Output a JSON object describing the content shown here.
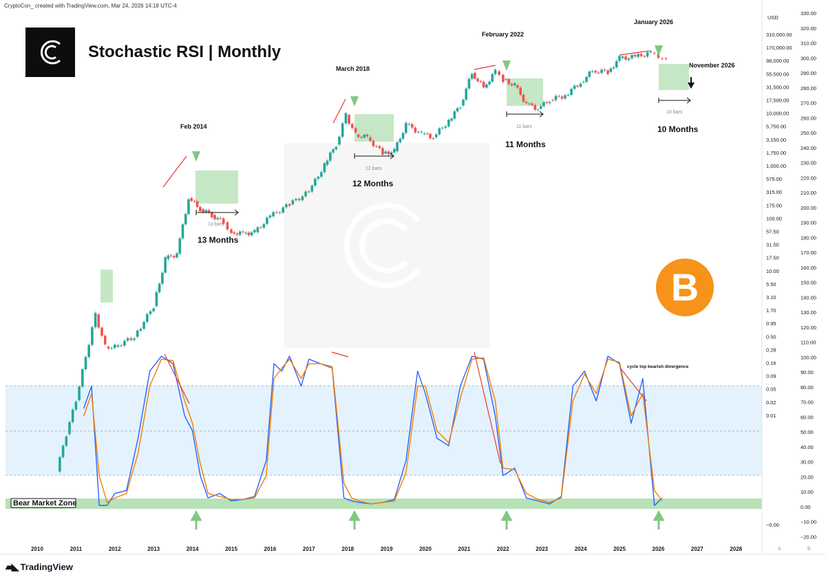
{
  "header": {
    "credit": "CryptoCon_ created with TradingView.com, Mar 24, 2026 14:18 UTC-4"
  },
  "title": "Stochastic RSI | Monthly",
  "footer": {
    "brand": "TradingView"
  },
  "colors": {
    "up": "#26a69a",
    "down": "#ef5350",
    "stoch_k": "#2962ff",
    "stoch_d": "#f57c00",
    "zone": "#b7e1b7",
    "band": "#e3f2fd",
    "divergence": "#e53935",
    "bitcoin": "#f7931a"
  },
  "chart_data": {
    "type": "line",
    "x_ticks": [
      "2010",
      "2011",
      "2012",
      "2013",
      "2014",
      "2015",
      "2016",
      "2017",
      "2018",
      "2019",
      "2020",
      "2021",
      "2022",
      "2023",
      "2024",
      "2025",
      "2026",
      "2027",
      "2028"
    ],
    "price_axis": {
      "unit": "USD",
      "scale": "log",
      "ticks": [
        "310,000.00",
        "170,000.00",
        "98,000.00",
        "55,500.00",
        "31,500.00",
        "17,500.00",
        "10,000.00",
        "5,750.00",
        "3,150.00",
        "1,750.00",
        "1,000.00",
        "575.00",
        "315.00",
        "175.00",
        "100.00",
        "57.50",
        "31.50",
        "17.50",
        "10.00",
        "5.50",
        "3.10",
        "1.70",
        "0.95",
        "0.50",
        "0.28",
        "0.16",
        "0.09",
        "0.05",
        "0.02",
        "0.01",
        "−0.00"
      ]
    },
    "stoch_axis": {
      "ticks": [
        "330.00",
        "320.00",
        "310.00",
        "300.00",
        "290.00",
        "280.00",
        "270.00",
        "260.00",
        "250.00",
        "240.00",
        "230.00",
        "220.00",
        "210.00",
        "200.00",
        "190.00",
        "180.00",
        "170.00",
        "160.00",
        "150.00",
        "140.00",
        "130.00",
        "120.00",
        "110.00",
        "100.00",
        "90.00",
        "80.00",
        "70.00",
        "60.00",
        "50.00",
        "40.00",
        "30.00",
        "20.00",
        "10.00",
        "0.00",
        "−10.00",
        "−20.00"
      ]
    },
    "stoch_levels": {
      "upper": 80,
      "middle": 50,
      "lower": 20
    },
    "annotations": [
      {
        "date_label": "Feb 2014",
        "duration": "13 Months",
        "bars": "13 bars"
      },
      {
        "date_label": "March 2018",
        "duration": "12 Months",
        "bars": "12 bars"
      },
      {
        "date_label": "February 2022",
        "duration": "11 Months",
        "bars": "11 bars"
      },
      {
        "date_label": "January 2026",
        "duration": "10 Months",
        "bars": "10 bars"
      },
      {
        "date_label": "November 2026"
      }
    ],
    "zone_label": "Bear Market Zone",
    "divergence_label": "cycle top bearish divergence",
    "corner_labels": [
      "A",
      "B"
    ],
    "price_series": {
      "years": [
        2010.5,
        2010.75,
        2011,
        2011.25,
        2011.5,
        2011.75,
        2012,
        2012.5,
        2013,
        2013.3,
        2013.6,
        2013.9,
        2014.2,
        2014.5,
        2014.8,
        2015,
        2015.3,
        2015.6,
        2016,
        2016.5,
        2017,
        2017.4,
        2017.7,
        2017.95,
        2018.2,
        2018.5,
        2018.9,
        2019.2,
        2019.5,
        2019.9,
        2020.2,
        2020.6,
        2020.9,
        2021.2,
        2021.5,
        2021.8,
        2022.0,
        2022.3,
        2022.6,
        2022.9,
        2023.2,
        2023.6,
        2024.0,
        2024.3,
        2024.7,
        2025.0,
        2025.4,
        2025.8,
        2026.0,
        2026.2
      ],
      "close": [
        0.07,
        0.25,
        0.8,
        3.5,
        15,
        5,
        5,
        7,
        20,
        100,
        120,
        800,
        550,
        450,
        350,
        250,
        240,
        250,
        430,
        650,
        1000,
        2500,
        5000,
        13800,
        7000,
        6400,
        3700,
        4000,
        10000,
        7200,
        6400,
        11300,
        19000,
        58000,
        35000,
        61000,
        46000,
        38000,
        20000,
        17000,
        23000,
        27000,
        42000,
        62000,
        60000,
        96000,
        100000,
        115000,
        95000,
        88000
      ]
    },
    "stoch_series": [
      {
        "name": "K",
        "x": [
          2011.2,
          2011.4,
          2011.6,
          2011.8,
          2012.0,
          2012.3,
          2012.6,
          2012.9,
          2013.2,
          2013.5,
          2013.8,
          2014.0,
          2014.2,
          2014.4,
          2014.7,
          2015.0,
          2015.3,
          2015.6,
          2015.9,
          2016.1,
          2016.3,
          2016.5,
          2016.8,
          2017.0,
          2017.3,
          2017.6,
          2017.9,
          2018.1,
          2018.3,
          2018.6,
          2018.9,
          2019.2,
          2019.5,
          2019.8,
          2020.0,
          2020.3,
          2020.6,
          2020.9,
          2021.2,
          2021.5,
          2021.8,
          2022.0,
          2022.3,
          2022.6,
          2022.9,
          2023.2,
          2023.5,
          2023.8,
          2024.1,
          2024.4,
          2024.7,
          2025.0,
          2025.3,
          2025.6,
          2025.9,
          2026.1
        ],
        "y": [
          65,
          80,
          0,
          0,
          8,
          10,
          45,
          90,
          100,
          95,
          60,
          50,
          20,
          5,
          8,
          3,
          4,
          6,
          30,
          95,
          90,
          100,
          80,
          98,
          95,
          92,
          5,
          3,
          2,
          1,
          2,
          4,
          30,
          90,
          75,
          45,
          40,
          80,
          100,
          98,
          60,
          20,
          25,
          5,
          3,
          1,
          6,
          80,
          90,
          70,
          100,
          95,
          55,
          85,
          0,
          5
        ]
      },
      {
        "name": "D",
        "x": [
          2011.2,
          2011.4,
          2011.6,
          2011.8,
          2012.0,
          2012.3,
          2012.6,
          2012.9,
          2013.2,
          2013.5,
          2013.8,
          2014.0,
          2014.2,
          2014.4,
          2014.7,
          2015.0,
          2015.3,
          2015.6,
          2015.9,
          2016.1,
          2016.3,
          2016.5,
          2016.8,
          2017.0,
          2017.3,
          2017.6,
          2017.9,
          2018.1,
          2018.3,
          2018.6,
          2018.9,
          2019.2,
          2019.5,
          2019.8,
          2020.0,
          2020.3,
          2020.6,
          2020.9,
          2021.2,
          2021.5,
          2021.8,
          2022.0,
          2022.3,
          2022.6,
          2022.9,
          2023.2,
          2023.5,
          2023.8,
          2024.1,
          2024.4,
          2024.7,
          2025.0,
          2025.3,
          2025.6,
          2025.9,
          2026.1
        ],
        "y": [
          60,
          75,
          20,
          2,
          5,
          8,
          35,
          80,
          98,
          97,
          70,
          55,
          28,
          8,
          6,
          4,
          4,
          5,
          20,
          85,
          92,
          98,
          85,
          95,
          95,
          93,
          15,
          5,
          3,
          1,
          2,
          3,
          22,
          80,
          80,
          50,
          42,
          72,
          98,
          99,
          70,
          25,
          24,
          8,
          4,
          2,
          5,
          70,
          88,
          75,
          98,
          96,
          60,
          75,
          10,
          3
        ]
      }
    ]
  }
}
